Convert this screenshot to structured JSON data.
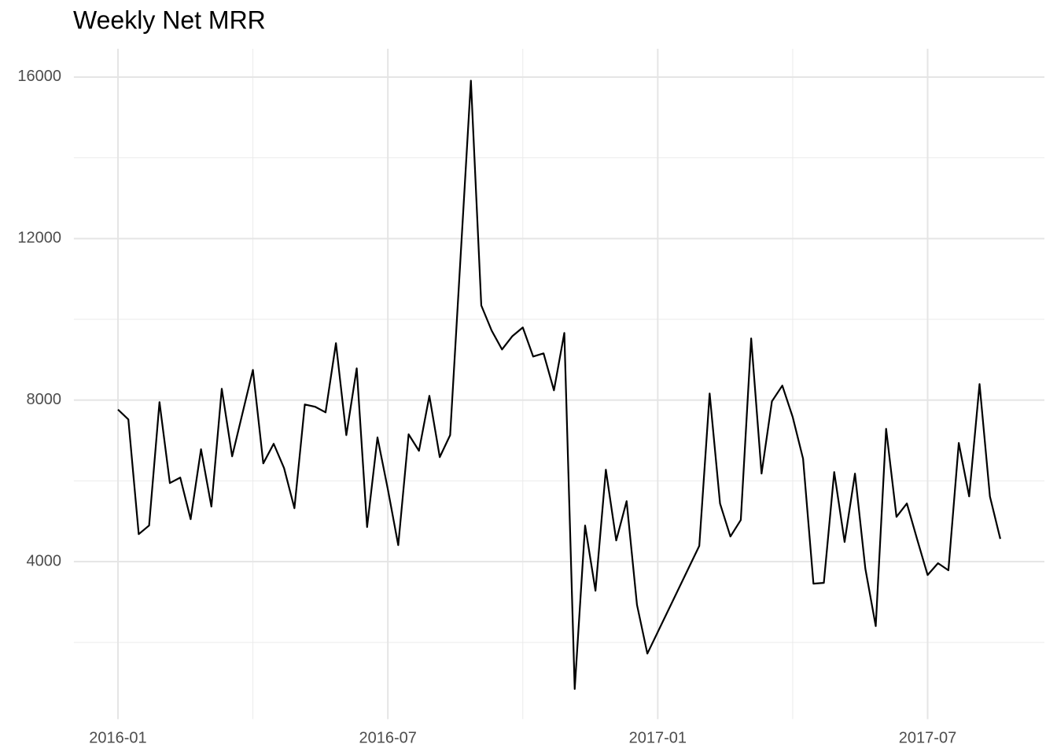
{
  "chart_data": {
    "type": "line",
    "title": "Weekly Net MRR",
    "x": [
      0,
      1,
      2,
      3,
      4,
      5,
      6,
      7,
      8,
      9,
      10,
      11,
      13,
      14,
      15,
      16,
      17,
      18,
      19,
      20,
      21,
      22,
      23,
      24,
      25,
      26,
      27,
      28,
      29,
      30,
      31,
      32,
      34,
      35,
      36,
      37,
      38,
      39,
      40,
      41,
      42,
      43,
      44,
      45,
      46,
      47,
      48,
      49,
      50,
      51,
      56,
      57,
      58,
      59,
      60,
      61,
      62,
      63,
      64,
      65,
      66,
      67,
      68,
      69,
      70,
      71,
      72,
      73,
      74,
      75,
      76,
      77,
      78,
      79,
      80,
      81,
      82,
      83,
      84,
      85
    ],
    "series": [
      {
        "name": "Weekly Net MRR",
        "color": "#000000",
        "values": [
          7766,
          7522,
          4681,
          4895,
          7950,
          5946,
          6082,
          5051,
          6783,
          5362,
          8281,
          6608,
          8748,
          6433,
          6919,
          6316,
          5323,
          7892,
          7834,
          7697,
          9410,
          7133,
          8787,
          4856,
          7075,
          5790,
          4409,
          7153,
          6744,
          8106,
          6588,
          7133,
          15910,
          10344,
          9721,
          9254,
          9585,
          9799,
          9079,
          9157,
          8242,
          9663,
          847,
          4895,
          3280,
          6277,
          4525,
          5498,
          2930,
          1723,
          4389,
          8164,
          5440,
          4623,
          5031,
          9527,
          6180,
          7970,
          8359,
          7581,
          6549,
          3455,
          3475,
          6218,
          4487,
          6180,
          3825,
          2404,
          7289,
          5109,
          5440,
          4545,
          3669,
          3961,
          3786,
          6938,
          5615,
          8398,
          5615,
          4564
        ]
      }
    ],
    "xlim": [
      -4.25,
      89.25
    ],
    "xticks": [
      {
        "value": 0,
        "label": "2016-01"
      },
      {
        "value": 26,
        "label": "2016-07"
      },
      {
        "value": 52,
        "label": "2017-01"
      },
      {
        "value": 78,
        "label": "2017-07"
      }
    ],
    "ylim": [
      100,
      16700
    ],
    "yticks": [
      4000,
      8000,
      12000,
      16000
    ],
    "grid": true
  }
}
